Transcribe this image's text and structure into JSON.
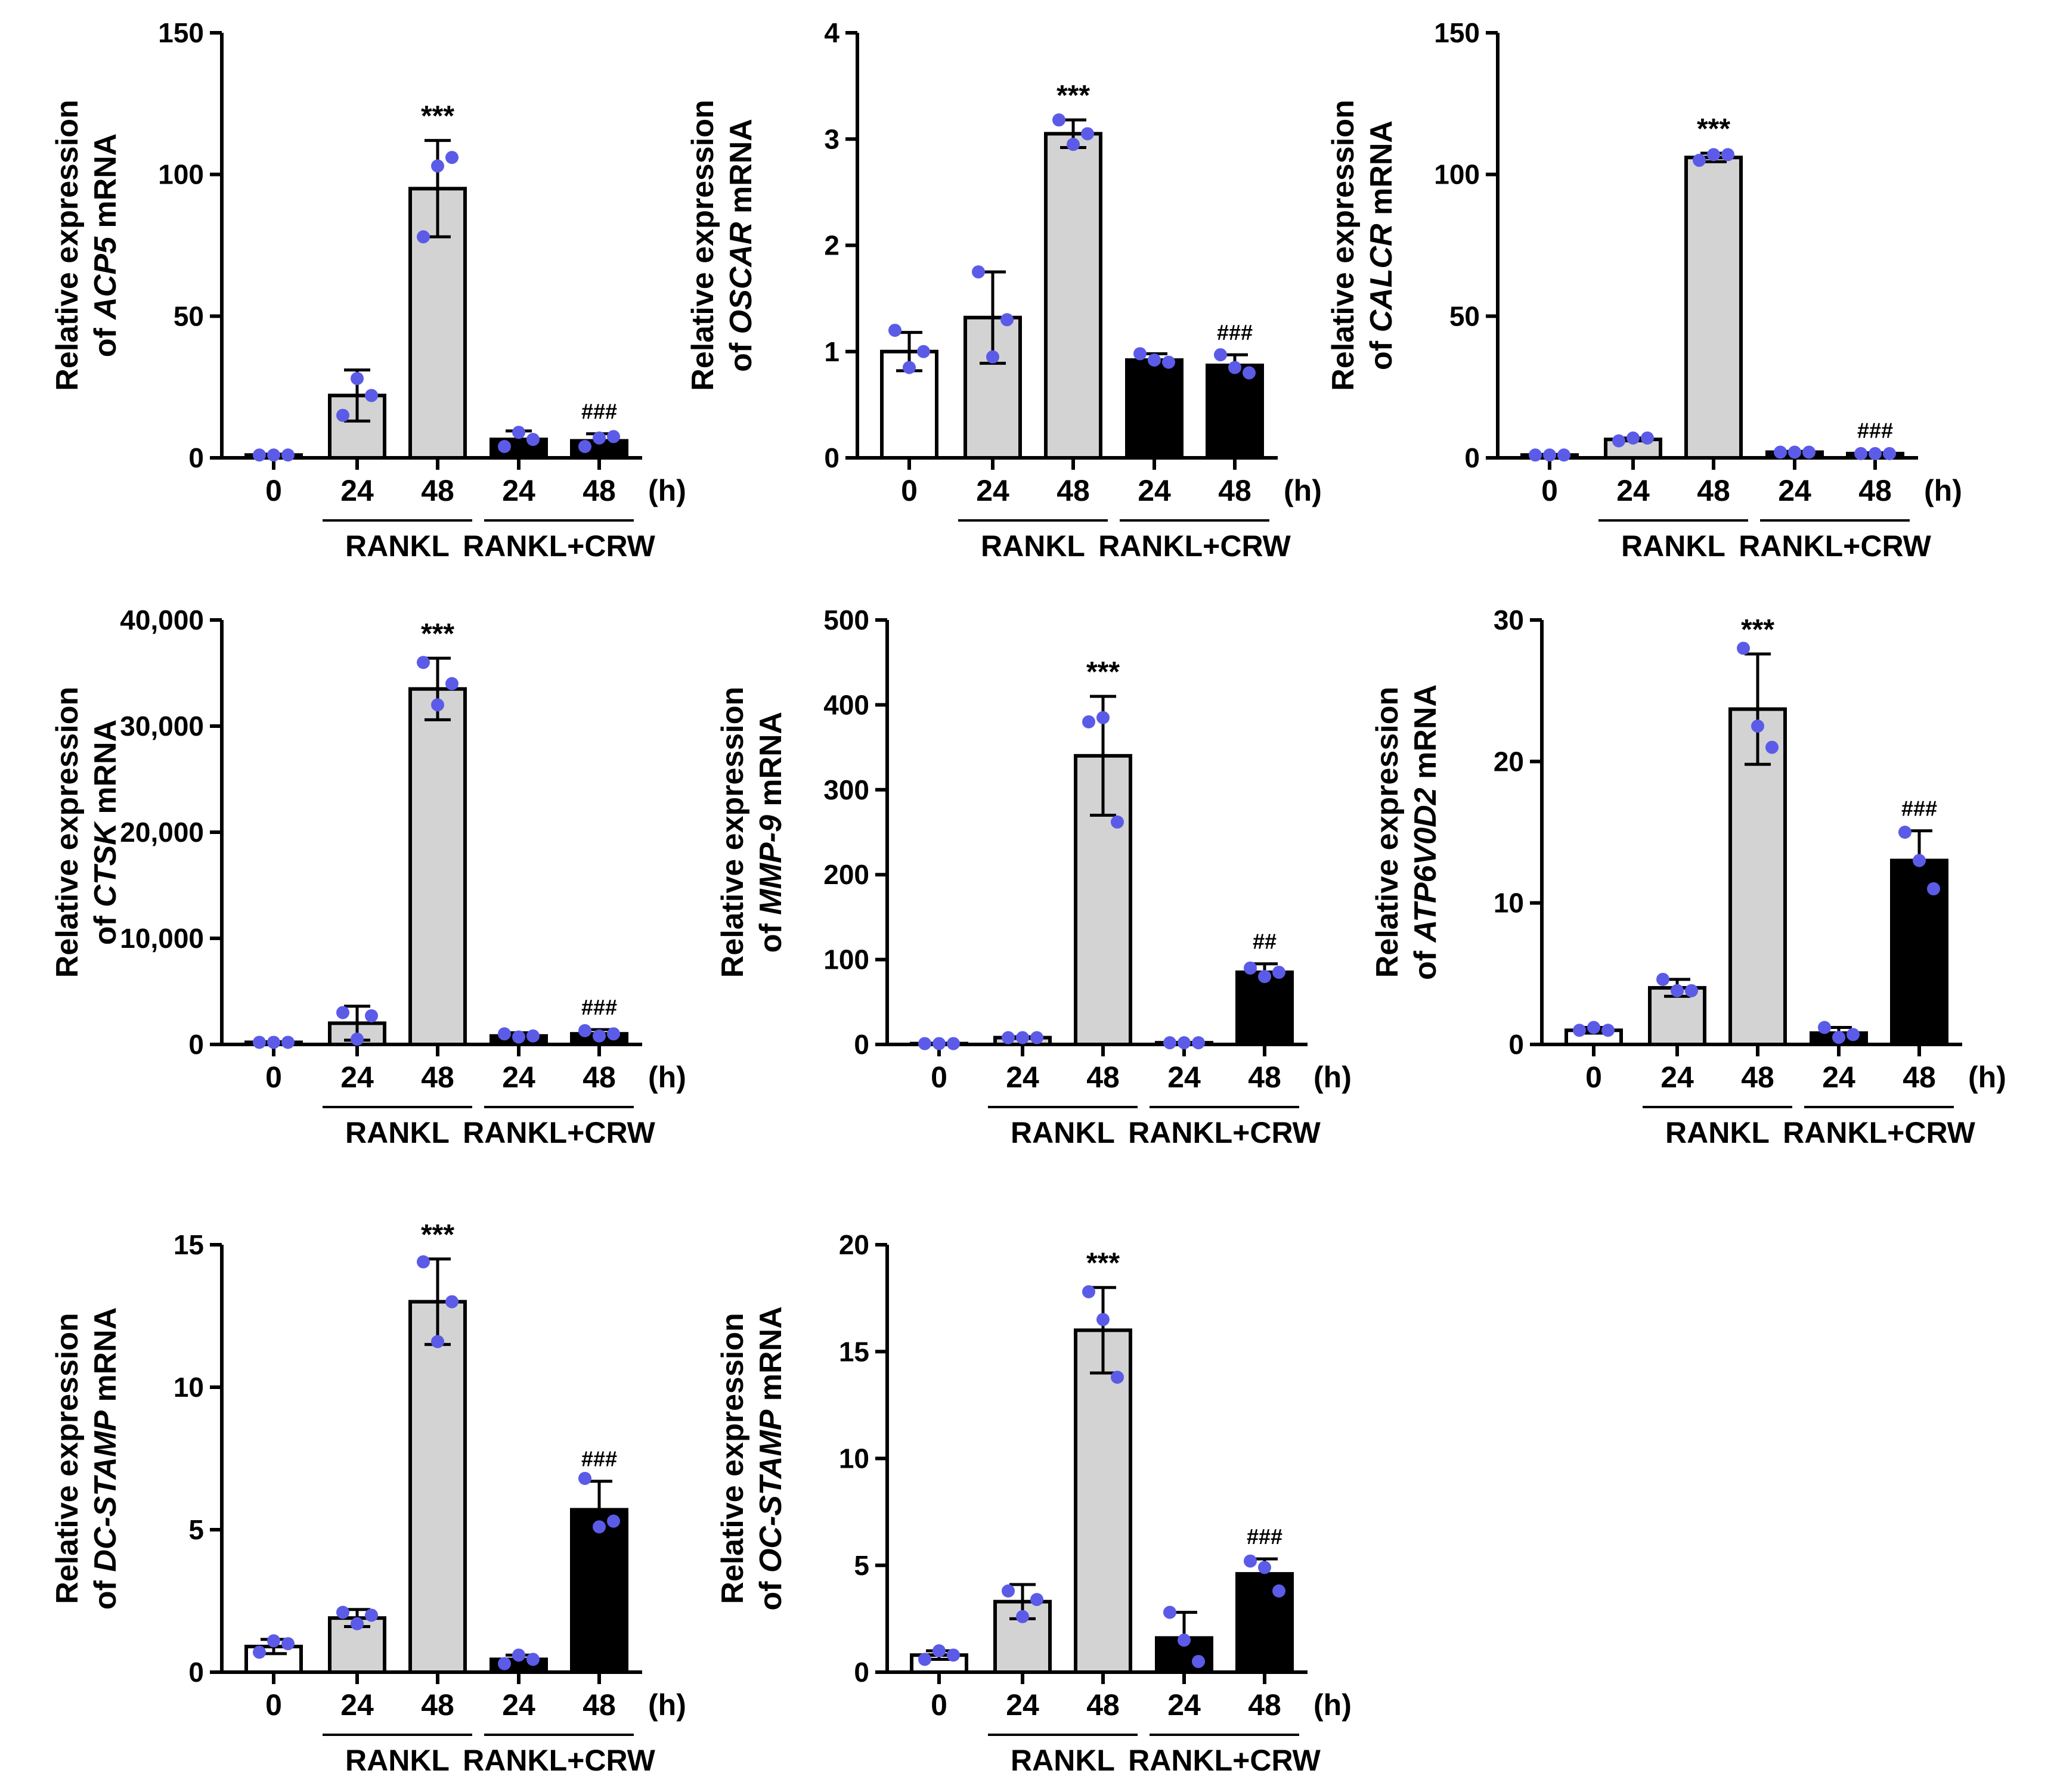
{
  "colors": {
    "axis": "#000000",
    "bar_control": "#ffffff",
    "bar_rankl": "#d3d3d3",
    "bar_crw": "#000000",
    "dot": "#5b5be8"
  },
  "chart_data": [
    {
      "type": "bar",
      "gene": "ACP5",
      "ylabel_line1": "Relative expression",
      "ylabel_prefix": "of ",
      "ylabel_suffix": " mRNA",
      "ylim": [
        0,
        150
      ],
      "yticks": [
        0,
        50,
        100,
        150
      ],
      "ytick_labels": [
        "0",
        "50",
        "100",
        "150"
      ],
      "categories": [
        "0",
        "24",
        "48",
        "24",
        "48"
      ],
      "unit_label": "(h)",
      "groups": [
        {
          "label": "RANKL",
          "from": 1,
          "to": 2
        },
        {
          "label": "RANKL+CRW",
          "from": 3,
          "to": 4
        }
      ],
      "values": [
        1,
        22,
        95,
        6.5,
        6
      ],
      "errors": [
        0.3,
        9,
        17,
        3,
        2.5
      ],
      "points": [
        [
          1,
          1,
          1
        ],
        [
          15,
          28,
          22
        ],
        [
          78,
          103,
          106
        ],
        [
          4,
          9,
          6.5
        ],
        [
          4,
          7,
          7.5
        ]
      ],
      "annotations": [
        "",
        "",
        "***",
        "",
        "###"
      ]
    },
    {
      "type": "bar",
      "gene": "OSCAR",
      "ylabel_line1": "Relative expression",
      "ylabel_prefix": "of ",
      "ylabel_suffix": " mRNA",
      "ylim": [
        0,
        4
      ],
      "yticks": [
        0,
        1,
        2,
        3,
        4
      ],
      "ytick_labels": [
        "0",
        "1",
        "2",
        "3",
        "4"
      ],
      "categories": [
        "0",
        "24",
        "48",
        "24",
        "48"
      ],
      "unit_label": "(h)",
      "groups": [
        {
          "label": "RANKL",
          "from": 1,
          "to": 2
        },
        {
          "label": "RANKL+CRW",
          "from": 3,
          "to": 4
        }
      ],
      "values": [
        1.0,
        1.32,
        3.05,
        0.92,
        0.87
      ],
      "errors": [
        0.18,
        0.43,
        0.13,
        0.06,
        0.1
      ],
      "points": [
        [
          1.2,
          0.85,
          1.0
        ],
        [
          1.75,
          0.95,
          1.3
        ],
        [
          3.18,
          2.95,
          3.05
        ],
        [
          0.98,
          0.92,
          0.9
        ],
        [
          0.97,
          0.85,
          0.8
        ]
      ],
      "annotations": [
        "",
        "",
        "***",
        "",
        "###"
      ]
    },
    {
      "type": "bar",
      "gene": "CALCR",
      "ylabel_line1": "Relative expression",
      "ylabel_prefix": "of ",
      "ylabel_suffix": " mRNA",
      "ylim": [
        0,
        150
      ],
      "yticks": [
        0,
        50,
        100,
        150
      ],
      "ytick_labels": [
        "0",
        "50",
        "100",
        "150"
      ],
      "categories": [
        "0",
        "24",
        "48",
        "24",
        "48"
      ],
      "unit_label": "(h)",
      "groups": [
        {
          "label": "RANKL",
          "from": 1,
          "to": 2
        },
        {
          "label": "RANKL+CRW",
          "from": 3,
          "to": 4
        }
      ],
      "values": [
        1,
        6.5,
        106,
        2,
        1.5
      ],
      "errors": [
        0.2,
        0.5,
        1.5,
        0.3,
        0.3
      ],
      "points": [
        [
          1,
          1,
          1
        ],
        [
          6,
          7,
          7
        ],
        [
          105,
          107,
          107
        ],
        [
          2,
          2,
          2
        ],
        [
          1.5,
          1.5,
          1.5
        ]
      ],
      "annotations": [
        "",
        "",
        "***",
        "",
        "###"
      ]
    },
    {
      "type": "bar",
      "gene": "CTSK",
      "ylabel_line1": "Relative expression",
      "ylabel_prefix": "of ",
      "ylabel_suffix": " mRNA",
      "ylim": [
        0,
        40000
      ],
      "yticks": [
        0,
        10000,
        20000,
        30000,
        40000
      ],
      "ytick_labels": [
        "0",
        "10,000",
        "20,000",
        "30,000",
        "40,000"
      ],
      "categories": [
        "0",
        "24",
        "48",
        "24",
        "48"
      ],
      "unit_label": "(h)",
      "groups": [
        {
          "label": "RANKL",
          "from": 1,
          "to": 2
        },
        {
          "label": "RANKL+CRW",
          "from": 3,
          "to": 4
        }
      ],
      "values": [
        200,
        2000,
        33500,
        800,
        1000
      ],
      "errors": [
        50,
        1600,
        2900,
        300,
        400
      ],
      "points": [
        [
          200,
          200,
          200
        ],
        [
          3000,
          500,
          2700
        ],
        [
          36000,
          32000,
          34000
        ],
        [
          1000,
          700,
          800
        ],
        [
          1300,
          800,
          1000
        ]
      ],
      "annotations": [
        "",
        "",
        "***",
        "",
        "###"
      ]
    },
    {
      "type": "bar",
      "gene": "MMP-9",
      "ylabel_line1": "Relative expression",
      "ylabel_prefix": "of ",
      "ylabel_suffix": " mRNA",
      "ylim": [
        0,
        500
      ],
      "yticks": [
        0,
        100,
        200,
        300,
        400,
        500
      ],
      "ytick_labels": [
        "0",
        "100",
        "200",
        "300",
        "400",
        "500"
      ],
      "categories": [
        "0",
        "24",
        "48",
        "24",
        "48"
      ],
      "unit_label": "(h)",
      "groups": [
        {
          "label": "RANKL",
          "from": 1,
          "to": 2
        },
        {
          "label": "RANKL+CRW",
          "from": 3,
          "to": 4
        }
      ],
      "values": [
        1,
        8,
        340,
        2,
        85
      ],
      "errors": [
        0.5,
        1,
        70,
        0.5,
        10
      ],
      "points": [
        [
          1,
          1,
          1
        ],
        [
          8,
          8,
          8
        ],
        [
          380,
          385,
          262
        ],
        [
          2,
          2,
          2
        ],
        [
          90,
          80,
          85
        ]
      ],
      "annotations": [
        "",
        "",
        "***",
        "",
        "##"
      ]
    },
    {
      "type": "bar",
      "gene": "ATP6V0D2",
      "ylabel_line1": "Relative expression",
      "ylabel_prefix": "of ",
      "ylabel_suffix": " mRNA",
      "ylim": [
        0,
        30
      ],
      "yticks": [
        0,
        10,
        20,
        30
      ],
      "ytick_labels": [
        "0",
        "10",
        "20",
        "30"
      ],
      "categories": [
        "0",
        "24",
        "48",
        "24",
        "48"
      ],
      "unit_label": "(h)",
      "groups": [
        {
          "label": "RANKL",
          "from": 1,
          "to": 2
        },
        {
          "label": "RANKL+CRW",
          "from": 3,
          "to": 4
        }
      ],
      "values": [
        1.0,
        4.0,
        23.7,
        0.8,
        13.0
      ],
      "errors": [
        0.2,
        0.6,
        3.9,
        0.4,
        2.1
      ],
      "points": [
        [
          1.0,
          1.2,
          1.0
        ],
        [
          4.6,
          3.8,
          3.8
        ],
        [
          28.0,
          22.5,
          21.0
        ],
        [
          1.2,
          0.5,
          0.7
        ],
        [
          15.0,
          13.0,
          11.0
        ]
      ],
      "annotations": [
        "",
        "",
        "***",
        "",
        "###"
      ]
    },
    {
      "type": "bar",
      "gene": "DC-STAMP",
      "ylabel_line1": "Relative expression",
      "ylabel_prefix": "of ",
      "ylabel_suffix": " mRNA",
      "ylim": [
        0,
        15
      ],
      "yticks": [
        0,
        5,
        10,
        15
      ],
      "ytick_labels": [
        "0",
        "5",
        "10",
        "15"
      ],
      "categories": [
        "0",
        "24",
        "48",
        "24",
        "48"
      ],
      "unit_label": "(h)",
      "groups": [
        {
          "label": "RANKL",
          "from": 1,
          "to": 2
        },
        {
          "label": "RANKL+CRW",
          "from": 3,
          "to": 4
        }
      ],
      "values": [
        0.9,
        1.9,
        13.0,
        0.45,
        5.7
      ],
      "errors": [
        0.25,
        0.3,
        1.5,
        0.15,
        1.0
      ],
      "points": [
        [
          0.7,
          1.1,
          1.0
        ],
        [
          2.1,
          1.7,
          2.0
        ],
        [
          14.4,
          11.6,
          13.0
        ],
        [
          0.3,
          0.6,
          0.45
        ],
        [
          6.8,
          5.1,
          5.3
        ]
      ],
      "annotations": [
        "",
        "",
        "***",
        "",
        "###"
      ]
    },
    {
      "type": "bar",
      "gene": "OC-STAMP",
      "ylabel_line1": "Relative expression",
      "ylabel_prefix": "of ",
      "ylabel_suffix": " mRNA",
      "ylim": [
        0,
        20
      ],
      "yticks": [
        0,
        5,
        10,
        15,
        20
      ],
      "ytick_labels": [
        "0",
        "5",
        "10",
        "15",
        "20"
      ],
      "categories": [
        "0",
        "24",
        "48",
        "24",
        "48"
      ],
      "unit_label": "(h)",
      "groups": [
        {
          "label": "RANKL",
          "from": 1,
          "to": 2
        },
        {
          "label": "RANKL+CRW",
          "from": 3,
          "to": 4
        }
      ],
      "values": [
        0.8,
        3.3,
        16.0,
        1.6,
        4.6
      ],
      "errors": [
        0.2,
        0.8,
        2.0,
        1.2,
        0.7
      ],
      "points": [
        [
          0.6,
          1.0,
          0.8
        ],
        [
          3.8,
          2.6,
          3.4
        ],
        [
          17.8,
          16.5,
          13.8
        ],
        [
          2.8,
          1.5,
          0.5
        ],
        [
          5.2,
          4.9,
          3.8
        ]
      ],
      "annotations": [
        "",
        "",
        "***",
        "",
        "###"
      ]
    }
  ]
}
